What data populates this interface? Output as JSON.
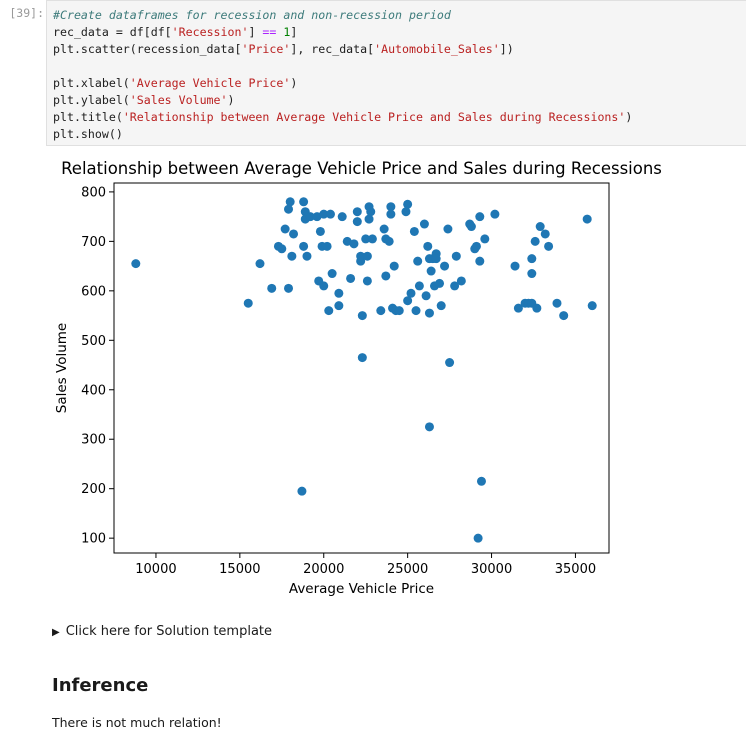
{
  "cell": {
    "prompt": "[39]:",
    "code_lines": [
      [
        {
          "t": "#Create dataframes for recession and non-recession period",
          "c": "com"
        }
      ],
      [
        {
          "t": "rec_data = df[df[",
          "c": ""
        },
        {
          "t": "'Recession'",
          "c": "str"
        },
        {
          "t": "] ",
          "c": ""
        },
        {
          "t": "==",
          "c": "op"
        },
        {
          "t": " ",
          "c": ""
        },
        {
          "t": "1",
          "c": "num"
        },
        {
          "t": "]",
          "c": ""
        }
      ],
      [
        {
          "t": "plt.scatter(recession_data[",
          "c": ""
        },
        {
          "t": "'Price'",
          "c": "str"
        },
        {
          "t": "], rec_data[",
          "c": ""
        },
        {
          "t": "'Automobile_Sales'",
          "c": "str"
        },
        {
          "t": "])",
          "c": ""
        }
      ],
      [],
      [
        {
          "t": "plt.xlabel(",
          "c": ""
        },
        {
          "t": "'Average Vehicle Price'",
          "c": "str"
        },
        {
          "t": ")",
          "c": ""
        }
      ],
      [
        {
          "t": "plt.ylabel(",
          "c": ""
        },
        {
          "t": "'Sales Volume'",
          "c": "str"
        },
        {
          "t": ")",
          "c": ""
        }
      ],
      [
        {
          "t": "plt.title(",
          "c": ""
        },
        {
          "t": "'Relationship between Average Vehicle Price and Sales during Recessions'",
          "c": "str"
        },
        {
          "t": ")",
          "c": ""
        }
      ],
      [
        {
          "t": "plt.show()",
          "c": ""
        }
      ]
    ]
  },
  "chart_data": {
    "type": "scatter",
    "title": "Relationship between Average Vehicle Price and Sales during Recessions",
    "xlabel": "Average Vehicle Price",
    "ylabel": "Sales Volume",
    "xlim": [
      7500,
      37000
    ],
    "ylim": [
      70,
      818
    ],
    "xticks": [
      10000,
      15000,
      20000,
      25000,
      30000,
      35000
    ],
    "yticks": [
      100,
      200,
      300,
      400,
      500,
      600,
      700,
      800
    ],
    "grid": false,
    "color": "#1f77b4",
    "points": [
      [
        8800,
        655
      ],
      [
        15500,
        575
      ],
      [
        16200,
        655
      ],
      [
        16900,
        605
      ],
      [
        17300,
        690
      ],
      [
        17500,
        685
      ],
      [
        17700,
        725
      ],
      [
        17900,
        605
      ],
      [
        17900,
        765
      ],
      [
        18000,
        780
      ],
      [
        18100,
        670
      ],
      [
        18200,
        715
      ],
      [
        18700,
        195
      ],
      [
        18800,
        690
      ],
      [
        18800,
        780
      ],
      [
        18900,
        760
      ],
      [
        18900,
        745
      ],
      [
        19000,
        670
      ],
      [
        19200,
        750
      ],
      [
        19600,
        750
      ],
      [
        19700,
        620
      ],
      [
        19800,
        720
      ],
      [
        19900,
        690
      ],
      [
        20000,
        610
      ],
      [
        20000,
        755
      ],
      [
        20200,
        690
      ],
      [
        20300,
        560
      ],
      [
        20400,
        755
      ],
      [
        20500,
        635
      ],
      [
        20900,
        595
      ],
      [
        20900,
        570
      ],
      [
        21100,
        750
      ],
      [
        21400,
        700
      ],
      [
        21600,
        625
      ],
      [
        21800,
        695
      ],
      [
        22000,
        740
      ],
      [
        22000,
        760
      ],
      [
        22200,
        660
      ],
      [
        22200,
        670
      ],
      [
        22300,
        465
      ],
      [
        22300,
        550
      ],
      [
        22500,
        705
      ],
      [
        22600,
        620
      ],
      [
        22600,
        670
      ],
      [
        22700,
        770
      ],
      [
        22700,
        745
      ],
      [
        22800,
        760
      ],
      [
        22900,
        705
      ],
      [
        23400,
        560
      ],
      [
        23600,
        725
      ],
      [
        23700,
        630
      ],
      [
        23700,
        705
      ],
      [
        23900,
        700
      ],
      [
        24000,
        770
      ],
      [
        24000,
        755
      ],
      [
        24100,
        565
      ],
      [
        24200,
        650
      ],
      [
        24300,
        560
      ],
      [
        24500,
        560
      ],
      [
        24900,
        760
      ],
      [
        25000,
        775
      ],
      [
        25000,
        580
      ],
      [
        25200,
        595
      ],
      [
        25400,
        720
      ],
      [
        25500,
        560
      ],
      [
        25600,
        660
      ],
      [
        25700,
        610
      ],
      [
        26000,
        735
      ],
      [
        26100,
        590
      ],
      [
        26200,
        690
      ],
      [
        26300,
        665
      ],
      [
        26300,
        325
      ],
      [
        26300,
        555
      ],
      [
        26400,
        640
      ],
      [
        26500,
        665
      ],
      [
        26600,
        610
      ],
      [
        26700,
        675
      ],
      [
        26700,
        665
      ],
      [
        26900,
        615
      ],
      [
        27000,
        570
      ],
      [
        27200,
        650
      ],
      [
        27400,
        725
      ],
      [
        27500,
        455
      ],
      [
        27800,
        610
      ],
      [
        27900,
        670
      ],
      [
        28200,
        620
      ],
      [
        28700,
        735
      ],
      [
        28800,
        730
      ],
      [
        29000,
        685
      ],
      [
        29100,
        690
      ],
      [
        29200,
        100
      ],
      [
        29300,
        750
      ],
      [
        29300,
        660
      ],
      [
        29400,
        215
      ],
      [
        29600,
        705
      ],
      [
        30200,
        755
      ],
      [
        31400,
        650
      ],
      [
        31600,
        565
      ],
      [
        32000,
        575
      ],
      [
        32200,
        575
      ],
      [
        32400,
        575
      ],
      [
        32400,
        665
      ],
      [
        32400,
        635
      ],
      [
        32600,
        700
      ],
      [
        32700,
        565
      ],
      [
        32900,
        730
      ],
      [
        33200,
        715
      ],
      [
        33400,
        690
      ],
      [
        33900,
        575
      ],
      [
        34300,
        550
      ],
      [
        35700,
        745
      ],
      [
        36000,
        570
      ]
    ]
  },
  "details": {
    "summary": "Click here for Solution template"
  },
  "inference": {
    "heading": "Inference",
    "text": "There is not much relation!"
  }
}
